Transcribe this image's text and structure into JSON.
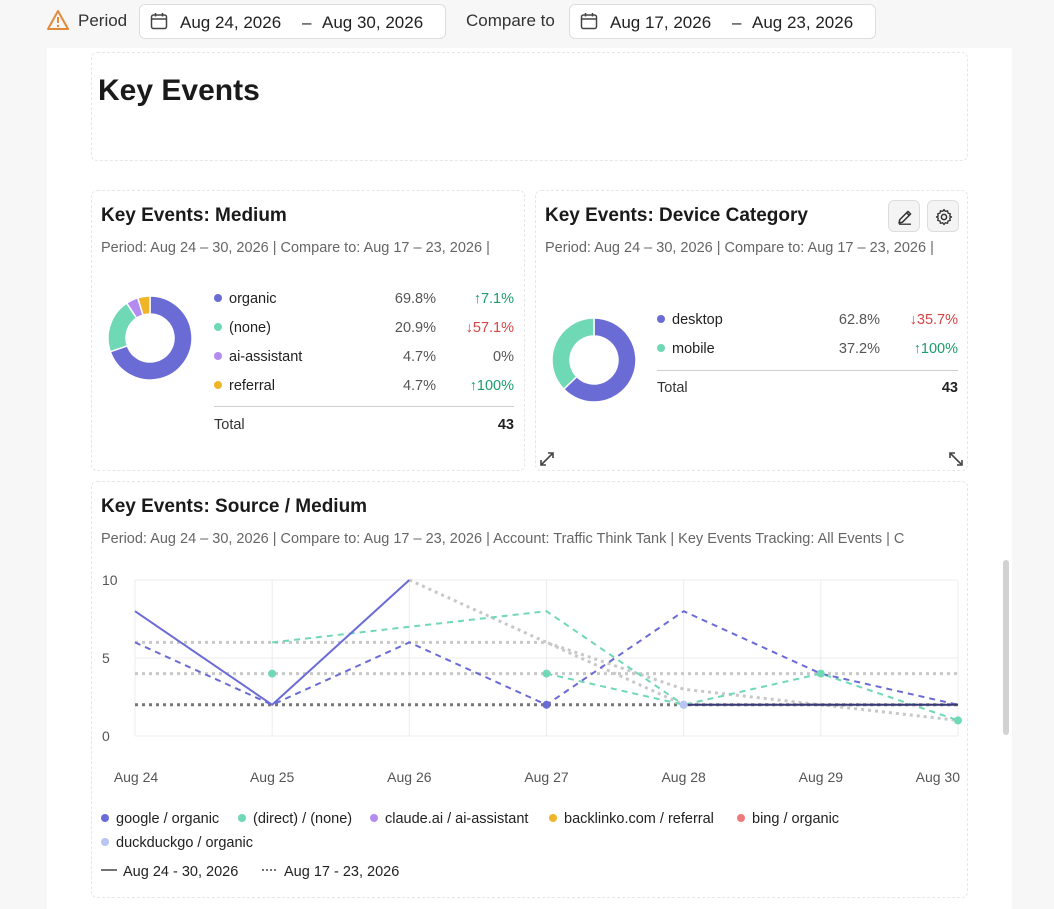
{
  "topbar": {
    "period_label": "Period",
    "period_start": "Aug 24, 2026",
    "period_end": "Aug 30, 2026",
    "compare_label": "Compare to",
    "compare_start": "Aug 17, 2026",
    "compare_end": "Aug 23, 2026",
    "dash": "–",
    "warning_icon": "warning-icon"
  },
  "page_title": "Key Events",
  "medium_card": {
    "title": "Key Events: Medium",
    "subtitle": "Period: Aug 24 – 30, 2026 | Compare to: Aug 17 – 23, 2026 |",
    "rows": [
      {
        "label": "organic",
        "pct": "69.8%",
        "change": "↑7.1%",
        "dir": "up",
        "color": "#6b6bd6"
      },
      {
        "label": "(none)",
        "pct": "20.9%",
        "change": "↓57.1%",
        "dir": "down",
        "color": "#6fd8b4"
      },
      {
        "label": "ai-assistant",
        "pct": "4.7%",
        "change": "0%",
        "dir": "flat",
        "color": "#b48cf0"
      },
      {
        "label": "referral",
        "pct": "4.7%",
        "change": "↑100%",
        "dir": "up",
        "color": "#f0b429"
      }
    ],
    "total_label": "Total",
    "total_value": "43",
    "slices": [
      69.8,
      20.9,
      4.7,
      4.7
    ]
  },
  "device_card": {
    "title": "Key Events: Device Category",
    "subtitle": "Period: Aug 24 – 30, 2026 | Compare to: Aug 17 – 23, 2026 |",
    "rows": [
      {
        "label": "desktop",
        "pct": "62.8%",
        "change": "↓35.7%",
        "dir": "down",
        "color": "#6b6bd6"
      },
      {
        "label": "mobile",
        "pct": "37.2%",
        "change": "↑100%",
        "dir": "up",
        "color": "#6fd8b4"
      }
    ],
    "total_label": "Total",
    "total_value": "43",
    "slices": [
      62.8,
      37.2
    ],
    "edit_icon": "pencil-icon",
    "settings_icon": "gear-icon"
  },
  "source_card": {
    "title": "Key Events: Source / Medium",
    "subtitle": "Period: Aug 24 – 30, 2026 | Compare to: Aug 17 – 23, 2026 | Account: Traffic Think Tank | Key Events Tracking: All Events | C",
    "legend": [
      {
        "label": "google / organic",
        "color": "#6b6bd6"
      },
      {
        "label": "(direct) / (none)",
        "color": "#6fd8b4"
      },
      {
        "label": "claude.ai / ai-assistant",
        "color": "#b48cf0"
      },
      {
        "label": "backlinko.com / referral",
        "color": "#f0b429"
      },
      {
        "label": "bing / organic",
        "color": "#ef7a7a"
      },
      {
        "label": "duckduckgo / organic",
        "color": "#b9c4f0"
      }
    ],
    "period_legend_current": "Aug 24 - 30, 2026",
    "period_legend_compare": "Aug 17 - 23, 2026"
  },
  "chart_data": {
    "type": "line",
    "x": [
      "Aug 24",
      "Aug 25",
      "Aug 26",
      "Aug 27",
      "Aug 28",
      "Aug 29",
      "Aug 30"
    ],
    "yticks": [
      "0",
      "5",
      "10"
    ],
    "ylim": [
      0,
      10
    ],
    "series": [
      {
        "name": "google / organic",
        "period": "current",
        "values": [
          8,
          2,
          10,
          null,
          null,
          null,
          null
        ],
        "color": "#6b6bd6",
        "style": "solid"
      },
      {
        "name": "google / organic",
        "period": "compare",
        "values": [
          6,
          2,
          6,
          2,
          8,
          4,
          2
        ],
        "color": "#6b6bd6",
        "style": "dashed"
      },
      {
        "name": "(direct) / (none)",
        "period": "current",
        "values": [
          null,
          4,
          null,
          4,
          2,
          4,
          1
        ],
        "color": "#6fd8b4",
        "style": "dashed"
      },
      {
        "name": "(direct) / (none)",
        "period": "compare",
        "values": [
          null,
          6,
          7,
          8,
          2,
          null,
          null
        ],
        "color": "#6fd8b4",
        "style": "dashed"
      },
      {
        "name": "",
        "period": "compare",
        "values": [
          6,
          6,
          6,
          6,
          3,
          2,
          1
        ],
        "color": "#c8c8c8",
        "style": "dotted"
      },
      {
        "name": "",
        "period": "compare",
        "values": [
          null,
          null,
          10,
          6,
          2,
          2,
          2
        ],
        "color": "#c8c8c8",
        "style": "dotted"
      },
      {
        "name": "",
        "period": "compare",
        "values": [
          4,
          4,
          4,
          4,
          4,
          4,
          4
        ],
        "color": "#c8c8c8",
        "style": "dotted"
      },
      {
        "name": "",
        "period": "compare",
        "values": [
          2,
          2,
          2,
          2,
          2,
          2,
          2
        ],
        "color": "#777777",
        "style": "dotted"
      },
      {
        "name": "",
        "period": "current",
        "values": [
          null,
          null,
          null,
          null,
          2,
          2,
          2
        ],
        "color": "#3a3a7a",
        "style": "solid"
      }
    ],
    "grid": true
  }
}
